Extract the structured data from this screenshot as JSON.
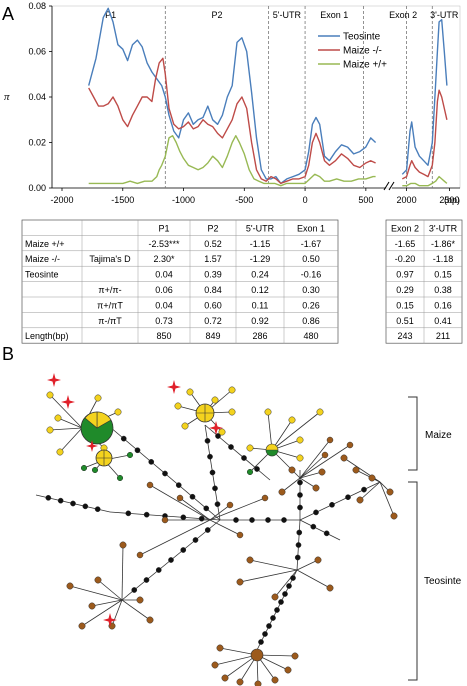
{
  "panel_a_label": "A",
  "panel_b_label": "B",
  "chart_data": {
    "type": "line",
    "ylabel": "π",
    "xlabel": "(bp)",
    "ylim": [
      0,
      0.08
    ],
    "y_ticks": [
      "0.00",
      "0.02",
      "0.04",
      "0.06",
      "0.08"
    ],
    "x_ticks_left": [
      "-2000",
      "-1500",
      "-1000",
      "-500",
      "0",
      "500"
    ],
    "x_ticks_right": [
      "2000",
      "2500"
    ],
    "x_break": true,
    "region_labels": [
      "P1",
      "P2",
      "5'-UTR",
      "Exon 1",
      "Exon 2",
      "3'-UTR"
    ],
    "region_boundaries": [
      -1150,
      -300,
      0,
      480,
      2000,
      2300
    ],
    "legend_position": "top-right",
    "series": [
      {
        "name": "Teosinte",
        "color": "#4a7ebb",
        "segments": [
          [
            [
              -1780,
              0.045
            ],
            [
              -1720,
              0.057
            ],
            [
              -1660,
              0.075
            ],
            [
              -1620,
              0.079
            ],
            [
              -1580,
              0.073
            ],
            [
              -1540,
              0.063
            ],
            [
              -1500,
              0.061
            ],
            [
              -1460,
              0.056
            ],
            [
              -1420,
              0.063
            ],
            [
              -1380,
              0.065
            ],
            [
              -1340,
              0.062
            ],
            [
              -1300,
              0.055
            ],
            [
              -1260,
              0.051
            ],
            [
              -1220,
              0.048
            ],
            [
              -1180,
              0.045
            ],
            [
              -1150,
              0.04
            ],
            [
              -1120,
              0.032
            ],
            [
              -1080,
              0.025
            ],
            [
              -1040,
              0.022
            ],
            [
              -1000,
              0.03
            ],
            [
              -960,
              0.033
            ],
            [
              -920,
              0.028
            ],
            [
              -880,
              0.03
            ],
            [
              -840,
              0.031
            ],
            [
              -800,
              0.036
            ],
            [
              -760,
              0.03
            ],
            [
              -720,
              0.028
            ],
            [
              -680,
              0.032
            ],
            [
              -640,
              0.04
            ],
            [
              -600,
              0.045
            ],
            [
              -560,
              0.064
            ],
            [
              -520,
              0.066
            ],
            [
              -480,
              0.06
            ],
            [
              -440,
              0.042
            ],
            [
              -400,
              0.022
            ],
            [
              -360,
              0.008
            ],
            [
              -320,
              0.004
            ],
            [
              -280,
              0.004
            ],
            [
              -240,
              0.005
            ],
            [
              -200,
              0.002
            ],
            [
              -150,
              0.004
            ],
            [
              -100,
              0.005
            ],
            [
              -50,
              0.006
            ],
            [
              0,
              0.008
            ],
            [
              30,
              0.016
            ],
            [
              60,
              0.028
            ],
            [
              90,
              0.031
            ],
            [
              120,
              0.028
            ],
            [
              160,
              0.014
            ],
            [
              200,
              0.012
            ],
            [
              250,
              0.016
            ],
            [
              300,
              0.019
            ],
            [
              350,
              0.018
            ],
            [
              400,
              0.015
            ],
            [
              450,
              0.016
            ],
            [
              500,
              0.018
            ],
            [
              540,
              0.022
            ],
            [
              580,
              0.02
            ]
          ],
          [
            [
              1950,
              0.006
            ],
            [
              2000,
              0.008
            ],
            [
              2040,
              0.025
            ],
            [
              2060,
              0.029
            ],
            [
              2100,
              0.018
            ],
            [
              2150,
              0.014
            ],
            [
              2200,
              0.012
            ],
            [
              2250,
              0.01
            ],
            [
              2300,
              0.02
            ],
            [
              2330,
              0.04
            ],
            [
              2360,
              0.06
            ],
            [
              2380,
              0.073
            ],
            [
              2410,
              0.074
            ],
            [
              2440,
              0.06
            ],
            [
              2470,
              0.045
            ]
          ]
        ]
      },
      {
        "name": "Maize -/-",
        "color": "#be4b48",
        "segments": [
          [
            [
              -1780,
              0.044
            ],
            [
              -1740,
              0.04
            ],
            [
              -1700,
              0.036
            ],
            [
              -1660,
              0.036
            ],
            [
              -1620,
              0.037
            ],
            [
              -1580,
              0.04
            ],
            [
              -1540,
              0.036
            ],
            [
              -1500,
              0.03
            ],
            [
              -1460,
              0.027
            ],
            [
              -1420,
              0.032
            ],
            [
              -1380,
              0.036
            ],
            [
              -1340,
              0.04
            ],
            [
              -1300,
              0.04
            ],
            [
              -1260,
              0.038
            ],
            [
              -1230,
              0.048
            ],
            [
              -1200,
              0.055
            ],
            [
              -1170,
              0.057
            ],
            [
              -1150,
              0.05
            ],
            [
              -1120,
              0.035
            ],
            [
              -1080,
              0.028
            ],
            [
              -1040,
              0.026
            ],
            [
              -1000,
              0.027
            ],
            [
              -960,
              0.029
            ],
            [
              -920,
              0.026
            ],
            [
              -880,
              0.027
            ],
            [
              -840,
              0.03
            ],
            [
              -800,
              0.028
            ],
            [
              -760,
              0.027
            ],
            [
              -720,
              0.024
            ],
            [
              -680,
              0.022
            ],
            [
              -640,
              0.026
            ],
            [
              -600,
              0.03
            ],
            [
              -560,
              0.037
            ],
            [
              -520,
              0.04
            ],
            [
              -480,
              0.035
            ],
            [
              -440,
              0.02
            ],
            [
              -400,
              0.008
            ],
            [
              -360,
              0.004
            ],
            [
              -320,
              0.003
            ],
            [
              -280,
              0.005
            ],
            [
              -240,
              0.004
            ],
            [
              -200,
              0.002
            ],
            [
              -150,
              0.003
            ],
            [
              -100,
              0.004
            ],
            [
              -50,
              0.004
            ],
            [
              0,
              0.005
            ],
            [
              30,
              0.01
            ],
            [
              60,
              0.02
            ],
            [
              90,
              0.024
            ],
            [
              120,
              0.02
            ],
            [
              160,
              0.012
            ],
            [
              200,
              0.01
            ],
            [
              250,
              0.012
            ],
            [
              300,
              0.015
            ],
            [
              350,
              0.013
            ],
            [
              400,
              0.01
            ],
            [
              450,
              0.009
            ],
            [
              500,
              0.011
            ],
            [
              540,
              0.012
            ],
            [
              580,
              0.011
            ]
          ],
          [
            [
              1950,
              0.004
            ],
            [
              2000,
              0.005
            ],
            [
              2040,
              0.01
            ],
            [
              2060,
              0.012
            ],
            [
              2100,
              0.009
            ],
            [
              2150,
              0.007
            ],
            [
              2200,
              0.006
            ],
            [
              2250,
              0.005
            ],
            [
              2300,
              0.01
            ],
            [
              2330,
              0.02
            ],
            [
              2360,
              0.038
            ],
            [
              2380,
              0.043
            ],
            [
              2410,
              0.04
            ],
            [
              2440,
              0.035
            ],
            [
              2470,
              0.03
            ]
          ]
        ]
      },
      {
        "name": "Maize +/+",
        "color": "#98b954",
        "segments": [
          [
            [
              -1780,
              0.002
            ],
            [
              -1700,
              0.002
            ],
            [
              -1620,
              0.002
            ],
            [
              -1560,
              0.002
            ],
            [
              -1500,
              0.002
            ],
            [
              -1440,
              0.003
            ],
            [
              -1380,
              0.002
            ],
            [
              -1320,
              0.003
            ],
            [
              -1260,
              0.003
            ],
            [
              -1220,
              0.005
            ],
            [
              -1200,
              0.008
            ],
            [
              -1180,
              0.01
            ],
            [
              -1150,
              0.014
            ],
            [
              -1120,
              0.022
            ],
            [
              -1090,
              0.023
            ],
            [
              -1060,
              0.02
            ],
            [
              -1030,
              0.016
            ],
            [
              -1000,
              0.013
            ],
            [
              -960,
              0.01
            ],
            [
              -920,
              0.009
            ],
            [
              -880,
              0.008
            ],
            [
              -840,
              0.009
            ],
            [
              -800,
              0.011
            ],
            [
              -760,
              0.014
            ],
            [
              -720,
              0.012
            ],
            [
              -680,
              0.009
            ],
            [
              -640,
              0.014
            ],
            [
              -600,
              0.02
            ],
            [
              -570,
              0.023
            ],
            [
              -540,
              0.02
            ],
            [
              -500,
              0.015
            ],
            [
              -460,
              0.008
            ],
            [
              -420,
              0.004
            ],
            [
              -380,
              0.003
            ],
            [
              -340,
              0.002
            ],
            [
              -300,
              0.002
            ],
            [
              -250,
              0.002
            ],
            [
              -200,
              0.001
            ],
            [
              -150,
              0.002
            ],
            [
              -100,
              0.002
            ],
            [
              -50,
              0.002
            ],
            [
              0,
              0.002
            ],
            [
              40,
              0.004
            ],
            [
              80,
              0.006
            ],
            [
              120,
              0.005
            ],
            [
              160,
              0.003
            ],
            [
              200,
              0.003
            ],
            [
              260,
              0.004
            ],
            [
              320,
              0.003
            ],
            [
              380,
              0.003
            ],
            [
              440,
              0.004
            ],
            [
              500,
              0.004
            ],
            [
              560,
              0.005
            ],
            [
              580,
              0.005
            ]
          ],
          [
            [
              1950,
              0.001
            ],
            [
              2000,
              0.001
            ],
            [
              2050,
              0.002
            ],
            [
              2100,
              0.002
            ],
            [
              2150,
              0.001
            ],
            [
              2200,
              0.001
            ],
            [
              2250,
              0.001
            ],
            [
              2300,
              0.002
            ],
            [
              2340,
              0.003
            ],
            [
              2380,
              0.005
            ],
            [
              2410,
              0.004
            ],
            [
              2440,
              0.003
            ],
            [
              2470,
              0.002
            ]
          ]
        ]
      }
    ]
  },
  "table_left": {
    "header": [
      "",
      "",
      "P1",
      "P2",
      "5'-UTR",
      "Exon 1"
    ],
    "row_labels": [
      "Maize +/+",
      "Maize -/-",
      "Teosinte",
      "",
      "",
      "",
      "Length(bp)"
    ],
    "stat_labels": [
      "Tajima's D",
      "π+/π-",
      "π+/πT",
      "π-/πT"
    ],
    "rows": [
      [
        "-2.53***",
        "0.52",
        "-1.15",
        "-1.67"
      ],
      [
        "2.30*",
        "1.57",
        "-1.29",
        "0.50"
      ],
      [
        "0.04",
        "0.39",
        "0.24",
        "-0.16"
      ],
      [
        "0.06",
        "0.84",
        "0.12",
        "0.30"
      ],
      [
        "0.04",
        "0.60",
        "0.11",
        "0.26"
      ],
      [
        "0.73",
        "0.72",
        "0.92",
        "0.86"
      ],
      [
        "850",
        "849",
        "286",
        "480"
      ]
    ]
  },
  "table_right": {
    "header": [
      "Exon 2",
      "3'-UTR"
    ],
    "rows": [
      [
        "-1.65",
        "-1.86*"
      ],
      [
        "-0.20",
        "-1.18"
      ],
      [
        "0.97",
        "0.15"
      ],
      [
        "0.29",
        "0.38"
      ],
      [
        "0.15",
        "0.16"
      ],
      [
        "0.51",
        "0.41"
      ],
      [
        "243",
        "211"
      ]
    ]
  },
  "network": {
    "group_labels": [
      "Maize",
      "Teosinte"
    ],
    "colors": {
      "maize_yellow": "#f4d31e",
      "maize_green": "#1f8a2a",
      "teosinte_brown": "#9c5a1c",
      "star_red": "#e0202a",
      "node_black": "#111111"
    }
  }
}
